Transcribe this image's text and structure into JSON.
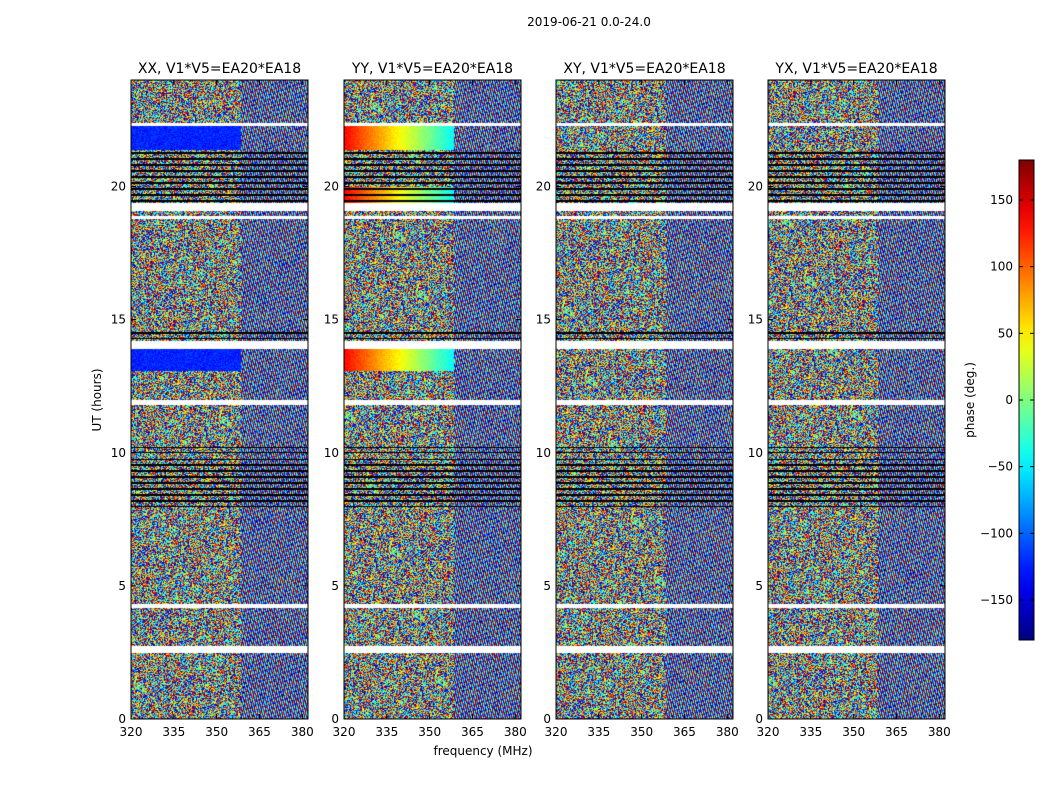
{
  "figure": {
    "suptitle": "2019-06-21 0.0-24.0"
  },
  "chart_data": {
    "type": "heatmap",
    "title": "2019-06-21 0.0-24.0",
    "xlabel": "frequency (MHz)",
    "ylabel": "UT (hours)",
    "xlim": [
      320,
      382
    ],
    "ylim": [
      0,
      24
    ],
    "xticks": [
      320,
      335,
      350,
      365,
      380
    ],
    "yticks": [
      0,
      5,
      10,
      15,
      20
    ],
    "panels": [
      {
        "title": "XX, V1*V5=EA20*EA18"
      },
      {
        "title": "YY, V1*V5=EA20*EA18"
      },
      {
        "title": "XY, V1*V5=EA20*EA18"
      },
      {
        "title": "YX, V1*V5=EA20*EA18"
      }
    ],
    "colorbar": {
      "label": "phase (deg.)",
      "range": [
        -180,
        180
      ],
      "ticks": [
        -150,
        -100,
        -50,
        0,
        50,
        100,
        150
      ],
      "tick_labels": [
        "−150",
        "−100",
        "−50",
        "0",
        "50",
        "100",
        "150"
      ],
      "colormap": "jet"
    },
    "blank_ut_ranges": [
      [
        2.5,
        2.75
      ],
      [
        4.2,
        4.35
      ],
      [
        11.8,
        12.0
      ],
      [
        13.9,
        14.2
      ],
      [
        18.8,
        18.9
      ],
      [
        19.1,
        19.4
      ],
      [
        22.3,
        22.4
      ]
    ],
    "flagged_black_ut_ranges": [
      [
        8.0,
        9.8
      ],
      [
        10.0,
        10.25
      ],
      [
        14.3,
        14.6
      ],
      [
        19.45,
        21.4
      ]
    ]
  }
}
